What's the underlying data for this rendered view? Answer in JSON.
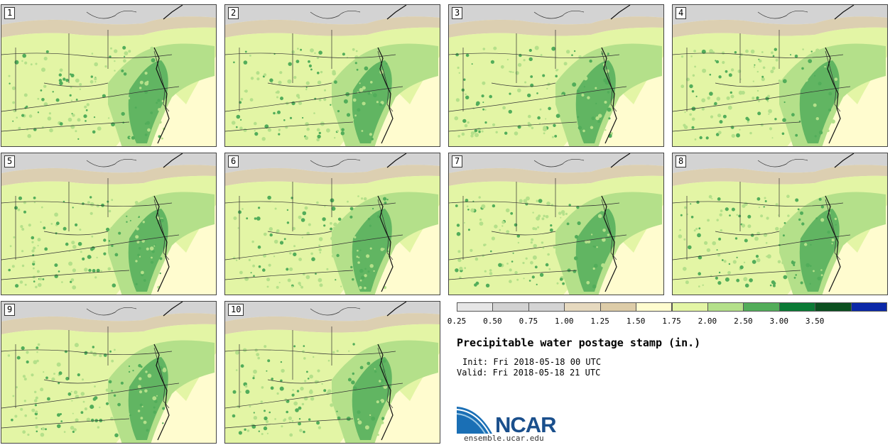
{
  "panels": [
    {
      "label": "1"
    },
    {
      "label": "2"
    },
    {
      "label": "3"
    },
    {
      "label": "4"
    },
    {
      "label": "5"
    },
    {
      "label": "6"
    },
    {
      "label": "7"
    },
    {
      "label": "8"
    },
    {
      "label": "9"
    },
    {
      "label": "10"
    }
  ],
  "colorbar": {
    "levels": [
      "0.25",
      "0.50",
      "0.75",
      "1.00",
      "1.25",
      "1.50",
      "1.75",
      "2.00",
      "2.50",
      "3.00",
      "3.50"
    ],
    "colors": [
      "#e6e6e6",
      "#d2d2d2",
      "#d4d4d4",
      "#e6d9bf",
      "#ddcca8",
      "#fffccf",
      "#e3f5a5",
      "#b4e08a",
      "#52ad5a",
      "#0a7a35",
      "#0b4f20",
      "#0b28a8"
    ]
  },
  "title": "Precipitable water postage stamp (in.)",
  "init_text": "Init: Fri 2018-05-18 00 UTC",
  "valid_text": "Valid: Fri 2018-05-18 21 UTC",
  "logo": {
    "name": "NCAR",
    "url": "ensemble.ucar.edu"
  },
  "map_colors": {
    "grey": "#d3d3d3",
    "tan": "#dccfb1",
    "cream": "#fffccf",
    "light_green": "#e3f5a5",
    "mid_green": "#b4e08a",
    "dark_green": "#52ad5a"
  }
}
